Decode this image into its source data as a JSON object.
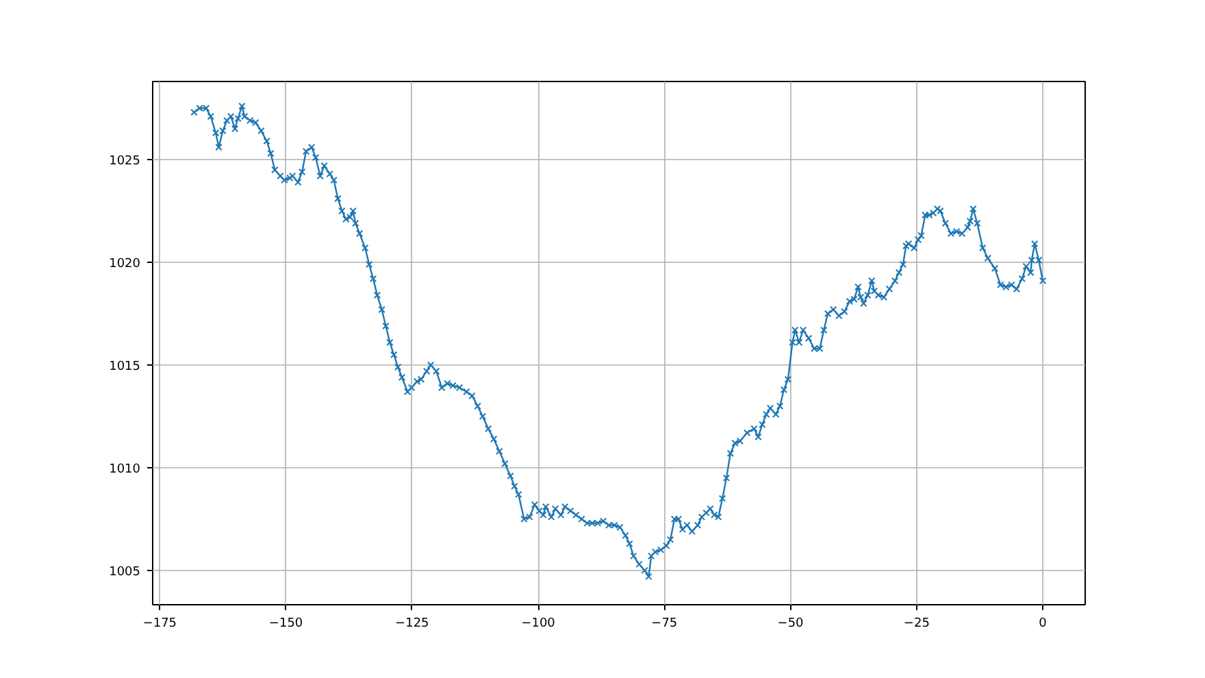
{
  "chart_data": {
    "type": "line",
    "marker": "cross",
    "line_style": "solid",
    "grid": true,
    "xlim": [
      -176.4,
      8.4
    ],
    "ylim": [
      1003.33,
      1028.8
    ],
    "xticks": [
      {
        "value": -175,
        "label": "−175"
      },
      {
        "value": -150,
        "label": "−150"
      },
      {
        "value": -125,
        "label": "−125"
      },
      {
        "value": -100,
        "label": "−100"
      },
      {
        "value": -75,
        "label": "−75"
      },
      {
        "value": -50,
        "label": "−50"
      },
      {
        "value": -25,
        "label": "−25"
      },
      0
    ],
    "yticks": [
      1005,
      1010,
      1015,
      1020,
      1025
    ],
    "x": [
      -168.2,
      -167.1,
      -165.8,
      -164.9,
      -163.9,
      -163.3,
      -162.5,
      -161.7,
      -160.9,
      -160.1,
      -159.5,
      -158.7,
      -158.2,
      -157.1,
      -156.0,
      -154.9,
      -153.8,
      -153.0,
      -152.2,
      -151.1,
      -150.3,
      -149.2,
      -148.7,
      -147.6,
      -146.8,
      -146.0,
      -144.9,
      -144.1,
      -143.2,
      -142.4,
      -141.3,
      -140.5,
      -139.7,
      -138.9,
      -138.1,
      -137.3,
      -136.7,
      -136.2,
      -135.4,
      -134.3,
      -133.5,
      -132.7,
      -131.9,
      -131.0,
      -130.2,
      -129.4,
      -128.6,
      -127.8,
      -127.0,
      -125.9,
      -125.1,
      -124.0,
      -123.2,
      -122.1,
      -121.3,
      -120.2,
      -119.1,
      -118.0,
      -116.9,
      -115.6,
      -114.2,
      -113.1,
      -112.0,
      -111.0,
      -109.9,
      -108.8,
      -107.7,
      -106.6,
      -105.5,
      -104.7,
      -103.9,
      -102.8,
      -101.7,
      -100.7,
      -99.8,
      -99.0,
      -98.5,
      -97.4,
      -96.6,
      -95.5,
      -94.7,
      -93.6,
      -92.5,
      -91.4,
      -90.3,
      -89.3,
      -88.2,
      -87.1,
      -86.0,
      -84.9,
      -83.8,
      -82.7,
      -81.9,
      -81.1,
      -80.0,
      -78.9,
      -78.1,
      -77.6,
      -76.8,
      -75.7,
      -74.6,
      -73.8,
      -73.0,
      -72.2,
      -71.4,
      -70.5,
      -69.5,
      -68.4,
      -67.6,
      -66.7,
      -65.9,
      -65.1,
      -64.3,
      -63.5,
      -62.7,
      -61.9,
      -61.0,
      -60.0,
      -58.6,
      -57.2,
      -56.4,
      -55.6,
      -54.8,
      -54.0,
      -52.9,
      -52.1,
      -51.3,
      -50.5,
      -49.6,
      -49.1,
      -48.3,
      -47.5,
      -46.4,
      -45.3,
      -44.2,
      -43.4,
      -42.6,
      -41.5,
      -40.4,
      -39.3,
      -38.3,
      -37.4,
      -36.6,
      -36.1,
      -35.5,
      -34.7,
      -33.9,
      -33.4,
      -32.6,
      -31.5,
      -30.4,
      -29.3,
      -28.5,
      -27.7,
      -27.1,
      -26.6,
      -25.5,
      -24.7,
      -24.1,
      -23.3,
      -22.5,
      -21.7,
      -20.9,
      -20.3,
      -19.3,
      -18.2,
      -17.1,
      -16.0,
      -14.9,
      -14.4,
      -13.8,
      -13.0,
      -11.9,
      -10.9,
      -9.5,
      -8.4,
      -7.3,
      -6.2,
      -5.2,
      -4.1,
      -3.3,
      -2.4,
      -2.2,
      -1.6,
      -0.8,
      0
    ],
    "series": [
      {
        "color": "#1f77b4",
        "values": [
          1027.3,
          1027.5,
          1027.5,
          1027.1,
          1026.3,
          1025.6,
          1026.4,
          1026.9,
          1027.1,
          1026.5,
          1027.0,
          1027.6,
          1027.1,
          1026.9,
          1026.8,
          1026.4,
          1025.9,
          1025.3,
          1024.5,
          1024.2,
          1024.0,
          1024.1,
          1024.2,
          1023.9,
          1024.4,
          1025.4,
          1025.6,
          1025.1,
          1024.2,
          1024.7,
          1024.3,
          1024.0,
          1023.1,
          1022.5,
          1022.1,
          1022.2,
          1022.5,
          1021.9,
          1021.4,
          1020.7,
          1019.9,
          1019.2,
          1018.4,
          1017.7,
          1016.9,
          1016.1,
          1015.5,
          1014.9,
          1014.4,
          1013.7,
          1013.9,
          1014.2,
          1014.3,
          1014.7,
          1015.0,
          1014.7,
          1013.9,
          1014.1,
          1014.0,
          1013.9,
          1013.7,
          1013.5,
          1013.0,
          1012.5,
          1011.9,
          1011.4,
          1010.8,
          1010.2,
          1009.6,
          1009.1,
          1008.7,
          1007.5,
          1007.6,
          1008.2,
          1007.9,
          1007.7,
          1008.1,
          1007.6,
          1008.0,
          1007.7,
          1008.1,
          1007.9,
          1007.7,
          1007.5,
          1007.3,
          1007.3,
          1007.3,
          1007.4,
          1007.2,
          1007.2,
          1007.1,
          1006.7,
          1006.3,
          1005.7,
          1005.3,
          1005.0,
          1004.7,
          1005.7,
          1005.9,
          1006.0,
          1006.2,
          1006.5,
          1007.5,
          1007.5,
          1007.0,
          1007.2,
          1006.9,
          1007.2,
          1007.6,
          1007.8,
          1008.0,
          1007.7,
          1007.6,
          1008.5,
          1009.5,
          1010.7,
          1011.2,
          1011.3,
          1011.7,
          1011.9,
          1011.5,
          1012.1,
          1012.6,
          1012.9,
          1012.6,
          1013.0,
          1013.8,
          1014.3,
          1016.1,
          1016.7,
          1016.1,
          1016.7,
          1016.3,
          1015.8,
          1015.8,
          1016.7,
          1017.5,
          1017.7,
          1017.4,
          1017.6,
          1018.1,
          1018.2,
          1018.8,
          1018.3,
          1018.0,
          1018.4,
          1019.1,
          1018.6,
          1018.4,
          1018.3,
          1018.7,
          1019.1,
          1019.5,
          1019.9,
          1020.8,
          1020.9,
          1020.7,
          1021.1,
          1021.3,
          1022.3,
          1022.3,
          1022.4,
          1022.6,
          1022.5,
          1021.9,
          1021.4,
          1021.5,
          1021.4,
          1021.7,
          1022.0,
          1022.6,
          1021.9,
          1020.7,
          1020.2,
          1019.7,
          1018.9,
          1018.8,
          1018.9,
          1018.7,
          1019.2,
          1019.8,
          1019.5,
          1020.1,
          1020.9,
          1020.1,
          1019.1
        ]
      }
    ]
  }
}
